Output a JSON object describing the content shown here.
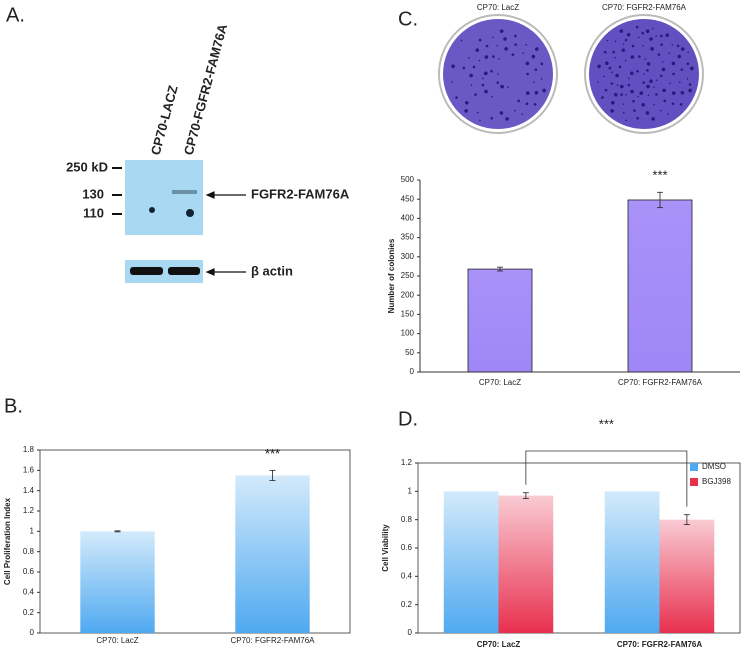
{
  "panel_labels": [
    "A.",
    "B.",
    "C.",
    "D."
  ],
  "blot": {
    "lanes": [
      "CP70-LACZ",
      "CP70-FGFR2-FAM76A"
    ],
    "markers": [
      "250 kD",
      "130",
      "110"
    ],
    "band_labels": [
      "FGFR2-FAM76A",
      "β actin"
    ]
  },
  "plates": [
    "CP70: LacZ",
    "CP70: FGFR2-FAM76A"
  ],
  "chart_data": [
    {
      "type": "bar",
      "y_label": "Cell Proliferation Index",
      "categories": [
        "CP70: LacZ",
        "CP70: FGFR2-FAM76A"
      ],
      "series": [
        {
          "color": "#4fa9f0",
          "values": [
            1.0,
            1.55
          ],
          "errors": [
            0.005,
            0.05
          ]
        }
      ],
      "ylim": [
        0,
        1.8
      ],
      "yticks": [
        0,
        0.2,
        0.4,
        0.6,
        0.8,
        1,
        1.2,
        1.4,
        1.6,
        1.8
      ],
      "annotation": "***"
    },
    {
      "type": "bar",
      "y_label": "Number of colonies",
      "categories": [
        "CP70: LacZ",
        "CP70: FGFR2-FAM76A"
      ],
      "series": [
        {
          "color": "#9f86f7",
          "values": [
            268,
            448
          ],
          "errors": [
            5,
            20
          ]
        }
      ],
      "ylim": [
        0,
        500
      ],
      "yticks": [
        0,
        50,
        100,
        150,
        200,
        250,
        300,
        350,
        400,
        450,
        500
      ],
      "annotation": "***"
    },
    {
      "type": "bar",
      "y_label": "Cell Viability",
      "categories": [
        "CP70: LacZ",
        "CP70: FGFR2-FAM76A"
      ],
      "series": [
        {
          "name": "DMSO",
          "color": "#4fa9f0",
          "values": [
            1,
            1
          ]
        },
        {
          "name": "BGJ398",
          "color": "#e8304f",
          "values": [
            0.97,
            0.8
          ],
          "errors": [
            0.02,
            0.035
          ]
        }
      ],
      "ylim": [
        0,
        1.2
      ],
      "yticks": [
        0,
        0.2,
        0.4,
        0.6,
        0.8,
        1,
        1.2
      ],
      "annotation": "***"
    }
  ]
}
